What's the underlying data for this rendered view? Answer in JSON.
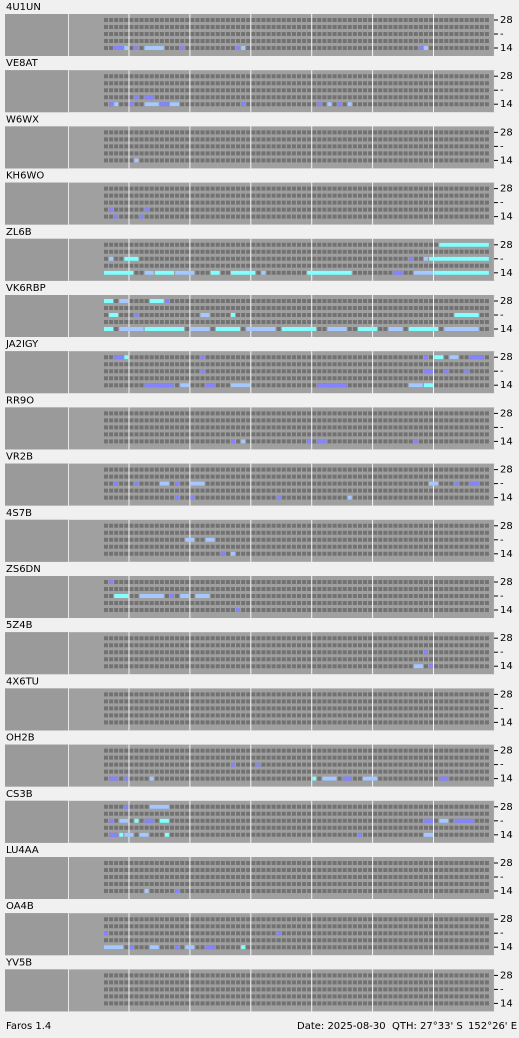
{
  "app": "Faros 1.4",
  "date": "Date: 2025-08-30",
  "qth": "QTH: 27°33' S",
  "lon": "152°26' E",
  "top_label": "28",
  "mid_label": "-",
  "bottom_label": "14",
  "level_colors": {
    "1": "#8484ff",
    "2": "#a4c8ff",
    "3": "#84ffff"
  },
  "stations": [
    {
      "name": "4U1UN",
      "runs": [
        [
          4,
          2,
          3,
          1
        ],
        [
          4,
          4,
          4,
          2
        ],
        [
          4,
          6,
          6,
          1
        ],
        [
          4,
          8,
          11,
          2
        ],
        [
          4,
          15,
          15,
          1
        ],
        [
          4,
          26,
          26,
          1
        ],
        [
          4,
          27,
          27,
          2
        ],
        [
          4,
          62,
          62,
          1
        ],
        [
          4,
          63,
          63,
          2
        ]
      ]
    },
    {
      "name": "VE8AT",
      "runs": [
        [
          3,
          6,
          6,
          1
        ],
        [
          3,
          8,
          9,
          1
        ],
        [
          4,
          1,
          1,
          1
        ],
        [
          4,
          2,
          2,
          2
        ],
        [
          4,
          5,
          5,
          1
        ],
        [
          4,
          8,
          10,
          2
        ],
        [
          4,
          11,
          12,
          1
        ],
        [
          4,
          13,
          14,
          2
        ],
        [
          4,
          27,
          27,
          1
        ],
        [
          4,
          42,
          42,
          1
        ],
        [
          4,
          44,
          44,
          2
        ],
        [
          4,
          46,
          46,
          1
        ],
        [
          4,
          48,
          48,
          2
        ]
      ]
    },
    {
      "name": "W6WX",
      "runs": [
        [
          4,
          6,
          6,
          2
        ]
      ]
    },
    {
      "name": "KH6WO",
      "runs": [
        [
          3,
          1,
          1,
          1
        ],
        [
          3,
          8,
          8,
          1
        ],
        [
          4,
          2,
          2,
          1
        ],
        [
          4,
          7,
          7,
          1
        ]
      ]
    },
    {
      "name": "ZL6B",
      "runs": [
        [
          0,
          66,
          75,
          3
        ],
        [
          2,
          1,
          1,
          2
        ],
        [
          2,
          4,
          6,
          3
        ],
        [
          2,
          60,
          60,
          1
        ],
        [
          2,
          63,
          63,
          2
        ],
        [
          2,
          64,
          75,
          3
        ],
        [
          4,
          0,
          5,
          3
        ],
        [
          4,
          8,
          9,
          2
        ],
        [
          4,
          10,
          13,
          3
        ],
        [
          4,
          14,
          17,
          2
        ],
        [
          4,
          21,
          22,
          3
        ],
        [
          4,
          25,
          29,
          3
        ],
        [
          4,
          31,
          31,
          2
        ],
        [
          4,
          40,
          48,
          3
        ],
        [
          4,
          57,
          58,
          1
        ],
        [
          4,
          61,
          64,
          2
        ],
        [
          4,
          65,
          75,
          3
        ]
      ]
    },
    {
      "name": "VK6RBP",
      "runs": [
        [
          0,
          0,
          1,
          3
        ],
        [
          0,
          3,
          4,
          2
        ],
        [
          0,
          9,
          11,
          3
        ],
        [
          0,
          12,
          12,
          1
        ],
        [
          2,
          1,
          2,
          3
        ],
        [
          2,
          6,
          6,
          1
        ],
        [
          2,
          19,
          20,
          2
        ],
        [
          2,
          25,
          25,
          3
        ],
        [
          2,
          69,
          73,
          3
        ],
        [
          4,
          0,
          1,
          3
        ],
        [
          4,
          3,
          7,
          2
        ],
        [
          4,
          8,
          15,
          3
        ],
        [
          4,
          17,
          20,
          2
        ],
        [
          4,
          22,
          26,
          3
        ],
        [
          4,
          28,
          33,
          2
        ],
        [
          4,
          35,
          41,
          3
        ],
        [
          4,
          44,
          47,
          2
        ],
        [
          4,
          50,
          53,
          3
        ],
        [
          4,
          56,
          58,
          2
        ],
        [
          4,
          60,
          65,
          3
        ],
        [
          4,
          67,
          73,
          2
        ]
      ]
    },
    {
      "name": "JA2IGY",
      "runs": [
        [
          0,
          2,
          3,
          1
        ],
        [
          0,
          4,
          4,
          3
        ],
        [
          0,
          19,
          19,
          1
        ],
        [
          0,
          63,
          63,
          1
        ],
        [
          0,
          65,
          66,
          3
        ],
        [
          0,
          68,
          69,
          2
        ],
        [
          0,
          72,
          74,
          1
        ],
        [
          2,
          19,
          19,
          1
        ],
        [
          2,
          63,
          64,
          1
        ],
        [
          2,
          67,
          67,
          1
        ],
        [
          2,
          71,
          71,
          1
        ],
        [
          4,
          8,
          13,
          1
        ],
        [
          4,
          15,
          16,
          2
        ],
        [
          4,
          20,
          21,
          1
        ],
        [
          4,
          25,
          28,
          2
        ],
        [
          4,
          42,
          47,
          1
        ],
        [
          4,
          60,
          62,
          2
        ],
        [
          4,
          63,
          64,
          3
        ]
      ]
    },
    {
      "name": "RR9O",
      "runs": [
        [
          4,
          25,
          25,
          1
        ],
        [
          4,
          27,
          27,
          2
        ],
        [
          4,
          40,
          40,
          1
        ],
        [
          4,
          42,
          43,
          1
        ],
        [
          4,
          61,
          61,
          1
        ]
      ]
    },
    {
      "name": "VR2B",
      "runs": [
        [
          2,
          2,
          2,
          1
        ],
        [
          2,
          6,
          6,
          1
        ],
        [
          2,
          11,
          12,
          2
        ],
        [
          2,
          14,
          14,
          1
        ],
        [
          2,
          17,
          19,
          2
        ],
        [
          2,
          64,
          65,
          2
        ],
        [
          2,
          69,
          69,
          1
        ],
        [
          2,
          72,
          73,
          1
        ],
        [
          4,
          14,
          14,
          1
        ],
        [
          4,
          17,
          17,
          1
        ],
        [
          4,
          34,
          34,
          1
        ],
        [
          4,
          48,
          48,
          2
        ]
      ]
    },
    {
      "name": "4S7B",
      "runs": [
        [
          2,
          16,
          17,
          2
        ],
        [
          2,
          20,
          21,
          2
        ],
        [
          4,
          23,
          23,
          1
        ],
        [
          4,
          25,
          25,
          2
        ]
      ]
    },
    {
      "name": "ZS6DN",
      "runs": [
        [
          0,
          1,
          1,
          1
        ],
        [
          2,
          2,
          4,
          3
        ],
        [
          2,
          7,
          11,
          2
        ],
        [
          2,
          13,
          13,
          1
        ],
        [
          2,
          15,
          16,
          2
        ],
        [
          2,
          18,
          20,
          2
        ],
        [
          4,
          26,
          26,
          1
        ]
      ]
    },
    {
      "name": "5Z4B",
      "runs": [
        [
          2,
          63,
          63,
          1
        ],
        [
          4,
          61,
          62,
          2
        ],
        [
          4,
          64,
          64,
          1
        ]
      ]
    },
    {
      "name": "4X6TU",
      "runs": []
    },
    {
      "name": "OH2B",
      "runs": [
        [
          2,
          25,
          25,
          1
        ],
        [
          2,
          30,
          30,
          1
        ],
        [
          4,
          1,
          2,
          1
        ],
        [
          4,
          4,
          4,
          1
        ],
        [
          4,
          9,
          9,
          2
        ],
        [
          4,
          41,
          41,
          3
        ],
        [
          4,
          43,
          45,
          2
        ],
        [
          4,
          47,
          48,
          1
        ],
        [
          4,
          51,
          53,
          2
        ],
        [
          4,
          66,
          67,
          1
        ]
      ]
    },
    {
      "name": "CS3B",
      "runs": [
        [
          0,
          4,
          4,
          1
        ],
        [
          0,
          9,
          12,
          2
        ],
        [
          2,
          1,
          1,
          1
        ],
        [
          2,
          3,
          4,
          2
        ],
        [
          2,
          6,
          6,
          3
        ],
        [
          2,
          8,
          9,
          1
        ],
        [
          2,
          11,
          12,
          3
        ],
        [
          2,
          63,
          64,
          1
        ],
        [
          2,
          66,
          67,
          2
        ],
        [
          2,
          69,
          72,
          1
        ],
        [
          4,
          1,
          2,
          1
        ],
        [
          4,
          3,
          3,
          3
        ],
        [
          4,
          4,
          5,
          2
        ],
        [
          4,
          7,
          8,
          2
        ],
        [
          4,
          12,
          12,
          3
        ],
        [
          4,
          50,
          50,
          1
        ],
        [
          4,
          63,
          64,
          2
        ]
      ]
    },
    {
      "name": "LU4AA",
      "runs": [
        [
          4,
          8,
          8,
          2
        ],
        [
          4,
          14,
          14,
          1
        ]
      ]
    },
    {
      "name": "OA4B",
      "runs": [
        [
          2,
          0,
          0,
          1
        ],
        [
          2,
          34,
          34,
          1
        ],
        [
          4,
          0,
          3,
          2
        ],
        [
          4,
          5,
          5,
          1
        ],
        [
          4,
          9,
          10,
          2
        ],
        [
          4,
          14,
          14,
          1
        ],
        [
          4,
          16,
          17,
          2
        ],
        [
          4,
          20,
          21,
          1
        ],
        [
          4,
          27,
          27,
          3
        ]
      ]
    },
    {
      "name": "YV5B",
      "runs": []
    }
  ]
}
